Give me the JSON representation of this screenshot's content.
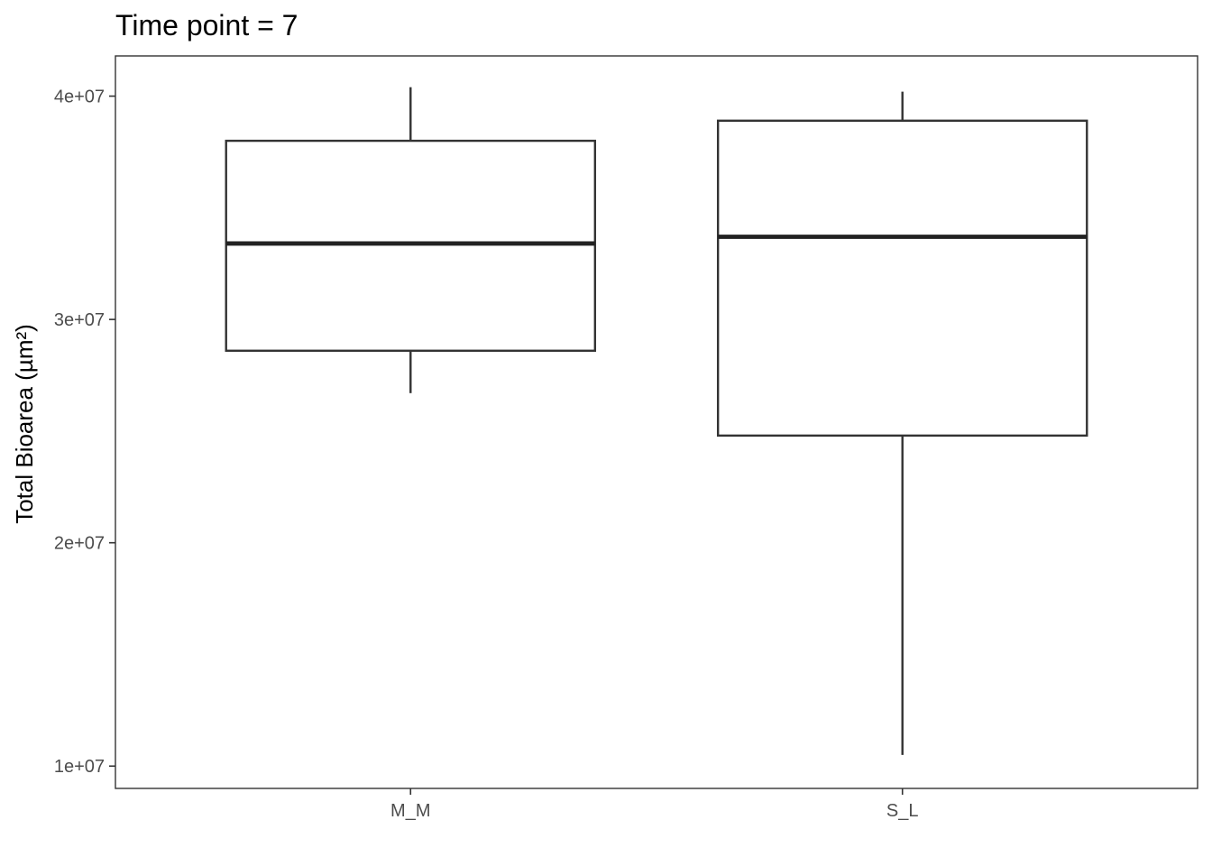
{
  "chart_data": {
    "type": "box",
    "title": "Time point = 7",
    "xlabel": "",
    "ylabel": "Total Bioarea (µm²)",
    "categories": [
      "M_M",
      "S_L"
    ],
    "boxes": [
      {
        "category": "M_M",
        "whisker_low": 26700000,
        "q1": 28600000,
        "median": 33400000,
        "q3": 38000000,
        "whisker_high": 40400000
      },
      {
        "category": "S_L",
        "whisker_low": 10500000,
        "q1": 24800000,
        "median": 33700000,
        "q3": 38900000,
        "whisker_high": 40200000
      }
    ],
    "y_ticks": [
      {
        "value": 10000000,
        "label": "1e+07"
      },
      {
        "value": 20000000,
        "label": "2e+07"
      },
      {
        "value": 30000000,
        "label": "3e+07"
      },
      {
        "value": 40000000,
        "label": "4e+07"
      }
    ],
    "ylim": [
      9000000,
      41800000
    ],
    "grid": false,
    "colors": {
      "box_stroke": "#333333",
      "box_fill": "#ffffff",
      "panel_border": "#333333",
      "tick_text": "#4d4d4d"
    }
  }
}
